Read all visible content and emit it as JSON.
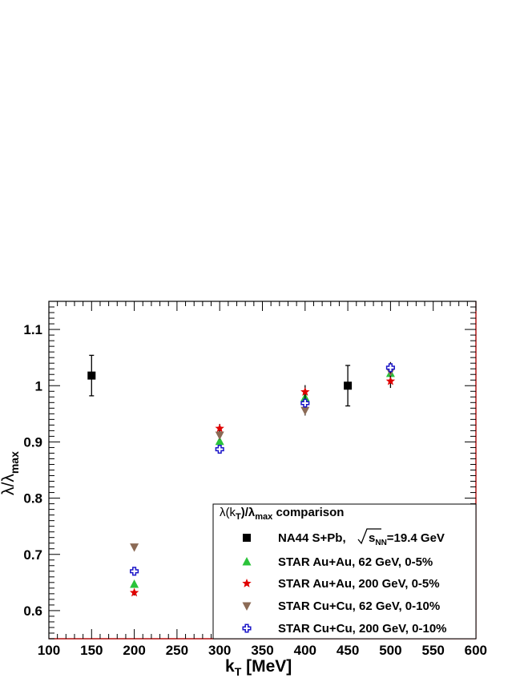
{
  "chart_data": {
    "type": "scatter",
    "xlabel": "k",
    "xlabel_sub": "T",
    "xlabel_unit": " [MeV]",
    "ylabel": "λ/λ",
    "ylabel_sub": "max",
    "xlim": [
      100,
      600
    ],
    "ylim": [
      0.55,
      1.15
    ],
    "x_ticks": [
      100,
      150,
      200,
      250,
      300,
      350,
      400,
      450,
      500,
      550,
      600
    ],
    "y_ticks": [
      0.6,
      0.7,
      0.8,
      0.9,
      1,
      1.1
    ],
    "y_tick_labels": [
      "0.6",
      "0.7",
      "0.8",
      "0.9",
      "1",
      "1.1"
    ],
    "legend": {
      "title_parts": [
        "λ(k",
        "T",
        ")/λ",
        "max",
        " comparison"
      ],
      "placement": "bottom-right"
    },
    "series": [
      {
        "name": "NA44 S+Pb,",
        "name_sqrt": "s",
        "name_sub": "NN",
        "name_tail": "=19.4 GeV",
        "marker": "square",
        "color": "#000000",
        "points": [
          {
            "x": 150,
            "y": 1.018,
            "err": 0.036
          },
          {
            "x": 450,
            "y": 1.0,
            "err": 0.036
          }
        ]
      },
      {
        "name": "STAR Au+Au, 62 GeV, 0-5%",
        "marker": "triangle-up",
        "color": "#2bc33a",
        "points": [
          {
            "x": 200,
            "y": 0.647,
            "err": 0.006
          },
          {
            "x": 300,
            "y": 0.901,
            "err": 0.008
          },
          {
            "x": 400,
            "y": 0.979,
            "err": 0.009
          },
          {
            "x": 500,
            "y": 1.022,
            "err": 0.01
          }
        ]
      },
      {
        "name": "STAR Au+Au, 200 GeV, 0-5%",
        "marker": "star",
        "color": "#e00000",
        "points": [
          {
            "x": 200,
            "y": 0.632,
            "err": 0.005
          },
          {
            "x": 300,
            "y": 0.924,
            "err": 0.008
          },
          {
            "x": 400,
            "y": 0.989,
            "err": 0.012
          },
          {
            "x": 500,
            "y": 1.008,
            "err": 0.012
          }
        ]
      },
      {
        "name": "STAR Cu+Cu, 62 GeV, 0-10%",
        "marker": "triangle-down",
        "color": "#8b6a55",
        "points": [
          {
            "x": 200,
            "y": 0.713,
            "err": 0.005
          },
          {
            "x": 300,
            "y": 0.912,
            "err": 0.008
          },
          {
            "x": 400,
            "y": 0.956,
            "err": 0.009
          },
          {
            "x": 500,
            "y": 1.025,
            "err": 0.01
          }
        ]
      },
      {
        "name": "STAR Cu+Cu, 200 GeV, 0-10%",
        "marker": "open-cross",
        "color": "#1a14c8",
        "points": [
          {
            "x": 200,
            "y": 0.67,
            "err": 0.005
          },
          {
            "x": 300,
            "y": 0.887,
            "err": 0.006
          },
          {
            "x": 400,
            "y": 0.969,
            "err": 0.008
          },
          {
            "x": 500,
            "y": 1.032,
            "err": 0.01
          }
        ]
      }
    ]
  }
}
